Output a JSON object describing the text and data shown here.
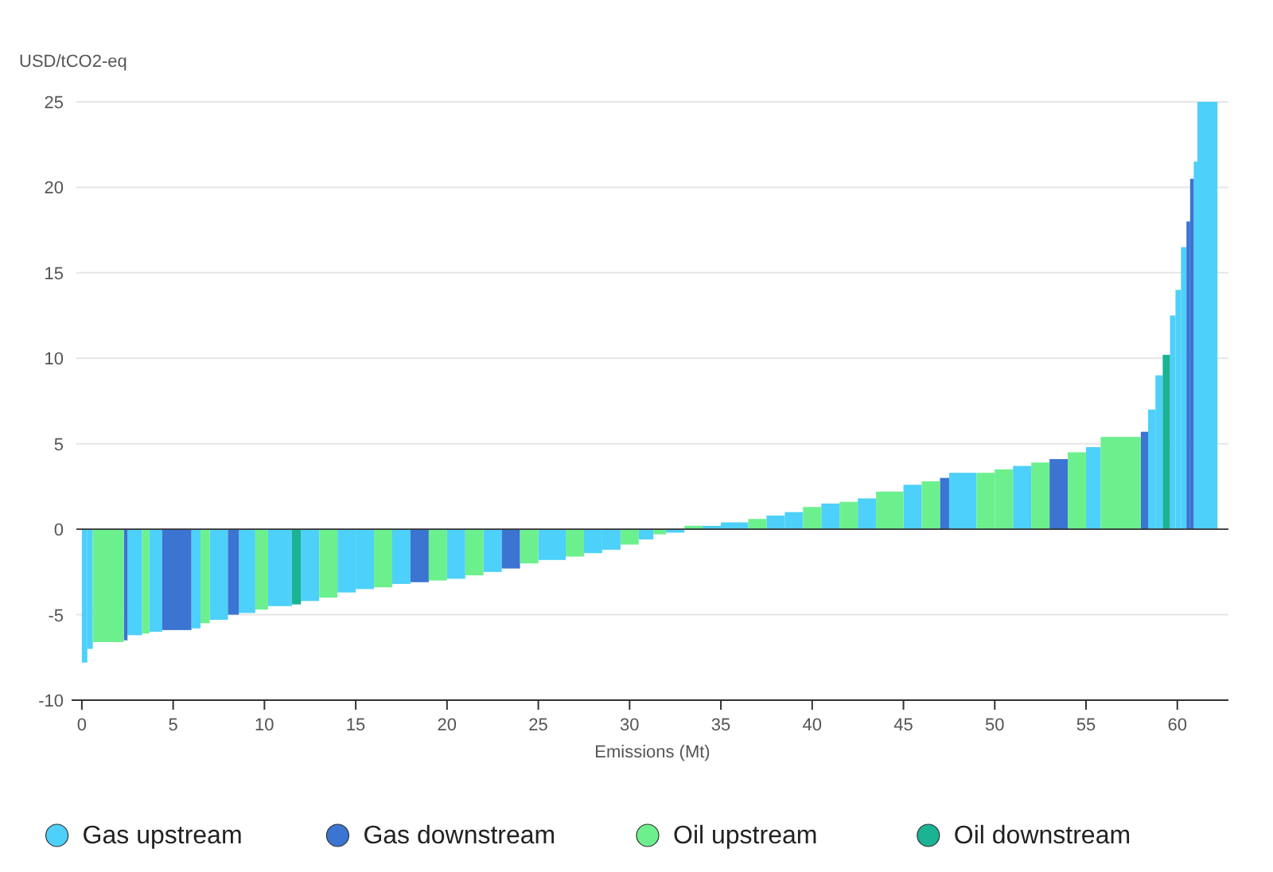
{
  "chart_data": {
    "type": "histogram",
    "xlabel": "Emissions (Mt)",
    "ylabel": "USD/tCO2-eq",
    "bins": [
      0,
      0.3,
      0.6,
      2.3,
      2.5,
      3.3,
      3.7,
      4.4,
      6.0,
      6.5,
      7.0,
      8.0,
      8.6,
      9.5,
      10.2,
      11.5,
      12,
      13,
      14,
      15,
      16,
      17,
      18,
      19,
      20,
      21,
      22,
      23,
      24,
      25,
      26.5,
      27.5,
      28.5,
      29.5,
      30.5,
      31.3,
      32,
      33,
      34,
      35,
      36.5,
      37.5,
      38.5,
      39.5,
      40.5,
      41.5,
      42.5,
      43.5,
      45,
      46,
      47,
      47.5,
      49,
      50,
      51,
      52,
      53,
      54,
      55,
      55.8,
      58,
      58.4,
      58.8,
      59.2,
      59.6,
      59.9,
      60.2,
      60.5,
      60.7,
      60.9,
      61.1,
      62.2
    ],
    "series": [
      {
        "name": "Gas upstream",
        "color": "#4dd0f9",
        "values": [
          -7.8,
          -7.0,
          null,
          null,
          -6.2,
          null,
          -6.0,
          null,
          -5.8,
          null,
          -5.3,
          null,
          -4.9,
          null,
          -4.5,
          null,
          -4.2,
          null,
          -3.7,
          -3.5,
          null,
          -3.2,
          null,
          null,
          -2.9,
          null,
          -2.5,
          null,
          null,
          -1.8,
          null,
          -1.4,
          -1.2,
          null,
          -0.6,
          null,
          -0.2,
          null,
          0.2,
          0.4,
          null,
          0.8,
          1.0,
          null,
          1.5,
          null,
          1.8,
          null,
          2.6,
          null,
          null,
          3.3,
          null,
          null,
          3.7,
          null,
          null,
          null,
          4.8,
          null,
          null,
          7,
          9,
          null,
          12.5,
          14,
          16.5,
          null,
          null,
          21.5,
          25
        ]
      },
      {
        "name": "Gas downstream",
        "color": "#3b74d1",
        "values": [
          null,
          null,
          null,
          -6.5,
          null,
          null,
          null,
          -5.9,
          null,
          null,
          null,
          -5.0,
          null,
          null,
          null,
          null,
          null,
          null,
          null,
          null,
          null,
          null,
          -3.1,
          null,
          null,
          null,
          null,
          -2.3,
          null,
          null,
          null,
          null,
          null,
          null,
          null,
          null,
          null,
          null,
          null,
          null,
          null,
          null,
          null,
          null,
          null,
          null,
          null,
          null,
          null,
          null,
          3.0,
          null,
          null,
          null,
          null,
          null,
          4.1,
          null,
          null,
          null,
          5.7,
          null,
          null,
          null,
          null,
          null,
          null,
          18,
          20.5,
          null,
          null
        ]
      },
      {
        "name": "Oil upstream",
        "color": "#6cf08e",
        "values": [
          null,
          null,
          -6.6,
          null,
          null,
          -6.1,
          null,
          null,
          null,
          -5.5,
          null,
          null,
          null,
          -4.7,
          null,
          null,
          null,
          -4.0,
          null,
          null,
          -3.4,
          null,
          null,
          -3.0,
          null,
          -2.7,
          null,
          null,
          -2.0,
          null,
          -1.6,
          null,
          null,
          -0.9,
          null,
          -0.3,
          null,
          0.2,
          null,
          null,
          0.6,
          null,
          null,
          1.3,
          null,
          1.6,
          null,
          2.2,
          null,
          2.8,
          null,
          null,
          3.3,
          3.5,
          null,
          3.9,
          null,
          4.5,
          null,
          5.4,
          null,
          null,
          null,
          null,
          null,
          null,
          null,
          null,
          null,
          null,
          null
        ]
      },
      {
        "name": "Oil downstream",
        "color": "#1ab394",
        "values": [
          null,
          null,
          null,
          null,
          null,
          null,
          null,
          null,
          null,
          null,
          null,
          null,
          null,
          null,
          null,
          -4.4,
          null,
          null,
          null,
          null,
          null,
          null,
          null,
          null,
          null,
          null,
          null,
          null,
          null,
          null,
          null,
          null,
          null,
          null,
          null,
          null,
          null,
          null,
          null,
          null,
          null,
          null,
          null,
          null,
          null,
          null,
          null,
          null,
          null,
          null,
          null,
          null,
          null,
          null,
          null,
          null,
          null,
          null,
          null,
          null,
          null,
          null,
          null,
          10.2,
          null,
          null,
          null,
          null,
          null,
          null,
          null
        ]
      }
    ],
    "xlim": [
      -0.3,
      62.8
    ],
    "xticks": [
      0,
      5,
      10,
      15,
      20,
      25,
      30,
      35,
      40,
      45,
      50,
      55,
      60
    ],
    "ylim": [
      -10,
      25
    ],
    "yticks": [
      -10,
      -5,
      0,
      5,
      10,
      15,
      20,
      25
    ],
    "ref_lines": [
      {
        "axis": "y",
        "value": 0,
        "color": "#333333"
      }
    ],
    "grid": "y",
    "legend": "bottom",
    "marker": "circle"
  }
}
